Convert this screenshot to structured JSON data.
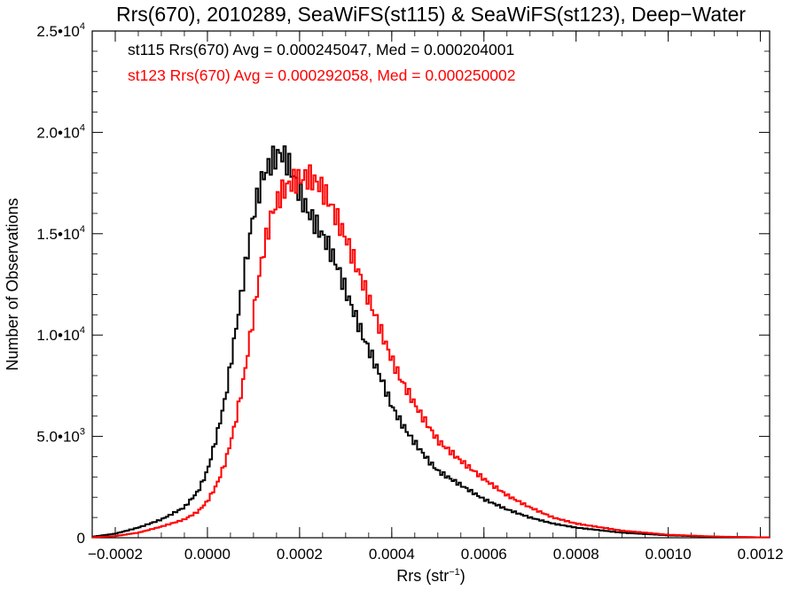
{
  "chart_data": {
    "type": "histogram",
    "title": "Rrs(670), 2010289, SeaWiFS(st115) & SeaWiFS(st123), Deep−Water",
    "xlabel": "Rrs (str",
    "xlabel_sup": "−1",
    "xlabel_close": ")",
    "ylabel": "Number of Observations",
    "xlim": [
      -0.00025,
      0.00122
    ],
    "ylim": [
      0,
      25000
    ],
    "x_ticks": [
      {
        "value": -0.0002,
        "label": "−0.0002"
      },
      {
        "value": 0.0,
        "label": "0.0000"
      },
      {
        "value": 0.0002,
        "label": "0.0002"
      },
      {
        "value": 0.0004,
        "label": "0.0004"
      },
      {
        "value": 0.0006,
        "label": "0.0006"
      },
      {
        "value": 0.0008,
        "label": "0.0008"
      },
      {
        "value": 0.001,
        "label": "0.0010"
      },
      {
        "value": 0.0012,
        "label": "0.0012"
      }
    ],
    "y_ticks": [
      {
        "value": 0,
        "mant": "0",
        "exp": ""
      },
      {
        "value": 5000,
        "mant": "5.0•10",
        "exp": "3"
      },
      {
        "value": 10000,
        "mant": "1.0•10",
        "exp": "4"
      },
      {
        "value": 15000,
        "mant": "1.5•10",
        "exp": "4"
      },
      {
        "value": 20000,
        "mant": "2.0•10",
        "exp": "4"
      },
      {
        "value": 25000,
        "mant": "2.5•10",
        "exp": "4"
      }
    ],
    "series": [
      {
        "legend": "st115 Rrs(670) Avg = 0.000245047, Med = 0.000204001",
        "color": "#000000",
        "x": [
          -0.00025,
          -0.0002,
          -0.00015,
          -0.0001,
          -5e-05,
          -2e-05,
          0.0,
          2e-05,
          4e-05,
          6e-05,
          8e-05,
          0.0001,
          0.00012,
          0.00014,
          0.00016,
          0.00018,
          0.0002,
          0.00022,
          0.00024,
          0.00026,
          0.00028,
          0.0003,
          0.00032,
          0.00034,
          0.00036,
          0.00038,
          0.0004,
          0.00042,
          0.00044,
          0.00046,
          0.00048,
          0.0005,
          0.00055,
          0.0006,
          0.00065,
          0.0007,
          0.00075,
          0.0008,
          0.0009,
          0.001,
          0.0011,
          0.0012
        ],
        "y": [
          50,
          200,
          500,
          900,
          1500,
          2300,
          3300,
          5000,
          7000,
          10000,
          13000,
          16000,
          17800,
          18600,
          19000,
          18300,
          17000,
          16000,
          15300,
          14500,
          13500,
          12200,
          11000,
          9800,
          8800,
          7700,
          6500,
          5700,
          5000,
          4400,
          3800,
          3300,
          2600,
          1900,
          1400,
          1000,
          700,
          500,
          250,
          120,
          50,
          20
        ]
      },
      {
        "legend": "st123 Rrs(670) Avg = 0.000292058, Med = 0.000250002",
        "color": "#ff0000",
        "x": [
          -0.00025,
          -0.0002,
          -0.00015,
          -0.0001,
          -5e-05,
          -2e-05,
          0.0,
          2e-05,
          4e-05,
          6e-05,
          8e-05,
          0.0001,
          0.00012,
          0.00014,
          0.00016,
          0.00018,
          0.0002,
          0.00022,
          0.00024,
          0.00026,
          0.00028,
          0.0003,
          0.00032,
          0.00034,
          0.00036,
          0.00038,
          0.0004,
          0.00042,
          0.00044,
          0.00046,
          0.00048,
          0.0005,
          0.00055,
          0.0006,
          0.00065,
          0.0007,
          0.00075,
          0.0008,
          0.0009,
          0.001,
          0.0011,
          0.0012
        ],
        "y": [
          20,
          80,
          250,
          550,
          900,
          1300,
          1800,
          2600,
          3800,
          5600,
          8000,
          11000,
          14000,
          16000,
          17000,
          17500,
          17700,
          17800,
          17500,
          16800,
          15800,
          14800,
          13600,
          12400,
          11200,
          10000,
          8800,
          7800,
          7000,
          6200,
          5500,
          4800,
          3800,
          2900,
          2100,
          1500,
          1000,
          700,
          350,
          150,
          60,
          20
        ]
      }
    ]
  }
}
